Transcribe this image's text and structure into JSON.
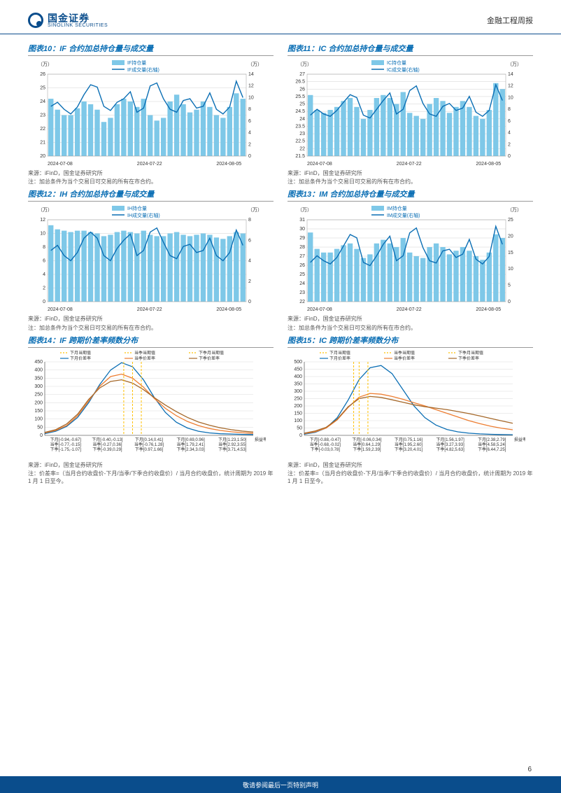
{
  "header": {
    "logo_cn": "国金证券",
    "logo_en": "SINOLINK SECURITIES",
    "right": "金融工程周报"
  },
  "footer": {
    "text": "敬请参阅最后一页特别声明",
    "page": "6"
  },
  "c10": {
    "title": "图表10：IF 合约加总持仓量与成交量",
    "src": "来源：iFinD，国金证券研究所",
    "note": "注：加总条件为当个交易日可交易的所有在市合约。",
    "yl_unit": "（万）",
    "yr_unit": "（万）",
    "leg_bar": "IF持仓量",
    "leg_line": "IF成交量(右轴)",
    "yl": [
      20,
      21,
      22,
      23,
      24,
      25,
      26
    ],
    "yr": [
      0,
      2,
      4,
      6,
      8,
      10,
      12,
      14
    ],
    "xticks": [
      "2024-07-08",
      "2024-07-22",
      "2024-08-05"
    ],
    "bars": [
      24.2,
      23.4,
      23.0,
      23.0,
      23.5,
      24.0,
      23.8,
      23.4,
      22.5,
      22.8,
      23.8,
      24.2,
      24.0,
      23.6,
      24.2,
      23.0,
      22.6,
      22.8,
      24.0,
      24.5,
      23.8,
      23.2,
      23.4,
      24.0,
      23.6,
      23.0,
      22.8,
      23.6,
      24.6,
      24.2
    ],
    "line": [
      8.5,
      9.2,
      8.0,
      7.2,
      8.4,
      10.5,
      12.2,
      11.8,
      8.5,
      7.8,
      9.2,
      9.8,
      11.0,
      7.5,
      8.2,
      12.0,
      12.5,
      9.8,
      8.0,
      7.5,
      9.5,
      9.8,
      8.2,
      8.5,
      10.8,
      8.0,
      7.2,
      8.4,
      12.8,
      10.0
    ],
    "bar_color": "#7ec8e8",
    "line_color": "#0a6eb4",
    "grid_color": "#d0d0d0"
  },
  "c11": {
    "title": "图表11：IC 合约加总持仓量与成交量",
    "src": "来源：iFinD，国金证券研究所",
    "note": "注：加总条件为当个交易日可交易的所有在市合约。",
    "yl_unit": "（万）",
    "yr_unit": "（万）",
    "leg_bar": "IC持仓量",
    "leg_line": "IC成交量(右轴)",
    "yl": [
      21.5,
      22,
      22.5,
      23,
      23.5,
      24,
      24.5,
      25,
      25.5,
      26,
      26.5,
      27
    ],
    "yr": [
      0,
      2,
      4,
      6,
      8,
      10,
      12,
      14
    ],
    "xticks": [
      "2024-07-08",
      "2024-07-22",
      "2024-08-05"
    ],
    "bars": [
      25.6,
      24.6,
      24.4,
      24.6,
      24.8,
      25.2,
      25.4,
      24.8,
      24.0,
      24.6,
      25.4,
      25.6,
      25.4,
      25.0,
      25.8,
      24.4,
      24.2,
      24.0,
      25.0,
      25.4,
      25.2,
      24.4,
      24.8,
      25.2,
      24.8,
      24.2,
      24.0,
      24.6,
      26.4,
      26.0
    ],
    "line": [
      7.0,
      8.0,
      7.2,
      6.8,
      7.8,
      9.2,
      10.5,
      10.0,
      7.0,
      6.5,
      8.0,
      9.5,
      10.8,
      7.2,
      8.0,
      11.2,
      12.0,
      9.0,
      7.2,
      6.8,
      8.5,
      9.0,
      7.8,
      8.2,
      10.2,
      7.5,
      6.8,
      7.8,
      12.2,
      9.5
    ],
    "bar_color": "#7ec8e8",
    "line_color": "#0a6eb4",
    "grid_color": "#d0d0d0"
  },
  "c12": {
    "title": "图表12：IH 合约加总持仓量与成交量",
    "src": "来源：iFinD，国金证券研究所",
    "note": "注：加总条件为当个交易日可交易的所有在市合约。",
    "yl_unit": "（万）",
    "yr_unit": "（万）",
    "leg_bar": "IH持仓量",
    "leg_line": "IH成交量(右轴)",
    "yl": [
      0,
      2,
      4,
      6,
      8,
      10,
      12
    ],
    "yr": [
      0,
      2,
      4,
      6,
      8
    ],
    "xticks": [
      "2024-07-08",
      "2024-07-22",
      "2024-08-05"
    ],
    "bars": [
      11.2,
      10.6,
      10.4,
      10.2,
      10.4,
      10.4,
      10.2,
      10.0,
      9.6,
      9.8,
      10.2,
      10.4,
      10.2,
      10.0,
      10.4,
      9.8,
      9.6,
      9.6,
      10.0,
      10.2,
      9.8,
      9.6,
      9.8,
      10.0,
      9.8,
      9.4,
      9.2,
      9.6,
      10.2,
      10.0
    ],
    "line": [
      5.0,
      5.5,
      4.5,
      4.0,
      4.8,
      6.2,
      6.8,
      6.2,
      4.5,
      4.0,
      5.2,
      6.0,
      6.6,
      4.5,
      5.0,
      6.8,
      7.2,
      5.8,
      4.5,
      4.2,
      5.4,
      5.6,
      4.8,
      5.0,
      6.2,
      4.5,
      4.0,
      4.8,
      7.0,
      5.5
    ],
    "bar_color": "#7ec8e8",
    "line_color": "#0a6eb4",
    "grid_color": "#d0d0d0"
  },
  "c13": {
    "title": "图表13：IM 合约加总持仓量与成交量",
    "src": "来源：iFinD，国金证券研究所",
    "note": "注：加总条件为当个交易日可交易的所有在市合约。",
    "yl_unit": "（万）",
    "yr_unit": "（万）",
    "leg_bar": "IM持仓量",
    "leg_line": "IM成交量(右轴)",
    "yl": [
      22,
      23,
      24,
      25,
      26,
      27,
      28,
      29,
      30,
      31
    ],
    "yr": [
      0,
      5,
      10,
      15,
      20,
      25
    ],
    "xticks": [
      "2024-07-08",
      "2024-07-22",
      "2024-08-05"
    ],
    "bars": [
      29.6,
      27.8,
      27.4,
      27.4,
      27.8,
      28.2,
      28.4,
      27.8,
      26.8,
      27.2,
      28.4,
      28.8,
      28.4,
      28.0,
      29.0,
      27.4,
      27.0,
      26.8,
      28.0,
      28.4,
      28.0,
      27.2,
      27.6,
      28.0,
      27.6,
      27.0,
      26.6,
      27.4,
      29.4,
      29.0
    ],
    "line": [
      12.0,
      14.0,
      12.5,
      11.5,
      13.5,
      17.0,
      20.5,
      19.5,
      12.0,
      11.0,
      14.0,
      17.5,
      20.0,
      12.5,
      14.0,
      21.0,
      22.5,
      16.5,
      12.5,
      11.8,
      15.5,
      16.0,
      13.5,
      14.5,
      19.0,
      13.0,
      11.5,
      13.8,
      23.0,
      17.5
    ],
    "bar_color": "#7ec8e8",
    "line_color": "#0a6eb4",
    "grid_color": "#d0d0d0"
  },
  "c14": {
    "title": "图表14：IF 跨期价差率频数分布",
    "src": "来源：iFinD，国金证券研究所",
    "note": "注：价差率=（当月合约收盘价-下月/当季/下季合约收盘价）/ 当月合约收盘价，统计周期为 2019 年 1 月 1 日至今。",
    "leg": [
      "下月当期值",
      "当季当期值",
      "下季月当期值",
      "下月价差率",
      "当季价差率",
      "下季价差率"
    ],
    "ymax": 450,
    "yticks": [
      0,
      50,
      100,
      150,
      200,
      250,
      300,
      350,
      400,
      450
    ],
    "xlabel": "损益率",
    "xlbl": [
      [
        "下月[-0.94,-0.67]",
        "当季[-0.77,-0.15]",
        "下季[-1.75,-1.07]"
      ],
      [
        "下月[-0.40,-0.13]",
        "当季[-0.27,0.36]",
        "下季[-0.39,0.29]"
      ],
      [
        "下月[0.14,0.41]",
        "当季[-0.76,1.28]",
        "下季[0.97,1.66]"
      ],
      [
        "下月[0.69,0.96]",
        "当季[1.79,2.41]",
        "下季[2.34,3.03]"
      ],
      [
        "下月[1.23,1.50]",
        "当季[2.92,3.55]",
        "下季[3.71,4.53]"
      ]
    ],
    "curves": {
      "blue": [
        10,
        25,
        55,
        110,
        200,
        310,
        400,
        445,
        420,
        340,
        230,
        140,
        80,
        45,
        25,
        15,
        10,
        8,
        6,
        5
      ],
      "orange": [
        15,
        30,
        60,
        120,
        210,
        300,
        360,
        375,
        350,
        295,
        225,
        165,
        120,
        85,
        60,
        42,
        30,
        22,
        16,
        12
      ],
      "brown": [
        18,
        35,
        70,
        130,
        220,
        290,
        330,
        340,
        320,
        280,
        230,
        185,
        145,
        110,
        82,
        62,
        46,
        35,
        26,
        20
      ]
    },
    "vlines": {
      "yellow": [
        7.2,
        8.0,
        8.8
      ]
    },
    "colors": {
      "blue": "#0a6eb4",
      "orange": "#ed7d31",
      "brown": "#a5682a",
      "yellow": "#ffc000",
      "grid": "#d0d0d0"
    }
  },
  "c15": {
    "title": "图表15：IC 跨期价差率频数分布",
    "src": "来源：iFinD，国金证券研究所",
    "note": "注：价差率=（当月合约收盘价-下月/当季/下季合约收盘价）/ 当月合约收盘价，统计周期为 2019 年 1 月 1 日至今。",
    "leg": [
      "下月当期值",
      "当季当期值",
      "下季月当期值",
      "下月价差率",
      "当季价差率",
      "下季价差率"
    ],
    "ymax": 500,
    "yticks": [
      0,
      50,
      100,
      150,
      200,
      250,
      300,
      350,
      400,
      450,
      500
    ],
    "xlabel": "损益率",
    "xlbl": [
      [
        "下月[-0.88,-0.47]",
        "当季[-0.68,-0.02]",
        "下季[-0.03,0.78]"
      ],
      [
        "下月[-0.06,0.34]",
        "当季[0.64,1.29]",
        "下季[1.59,2.39]"
      ],
      [
        "下月[0.75,1.16]",
        "当季[1.95,2.60]",
        "下季[3.20,4.01]"
      ],
      [
        "下月[1.56,1.97]",
        "当季[3.27,3.93]",
        "下季[4.82,5.63]"
      ],
      [
        "下月[2.38,2.79]",
        "当季[4.58,5.24]",
        "下季[6.44,7.25]"
      ]
    ],
    "curves": {
      "blue": [
        8,
        20,
        50,
        120,
        240,
        380,
        460,
        475,
        420,
        310,
        200,
        120,
        70,
        40,
        24,
        15,
        10,
        7,
        5,
        4
      ],
      "orange": [
        12,
        24,
        50,
        105,
        190,
        260,
        285,
        280,
        265,
        245,
        222,
        200,
        175,
        150,
        125,
        100,
        80,
        62,
        48,
        38
      ],
      "brown": [
        15,
        30,
        55,
        110,
        195,
        250,
        265,
        258,
        242,
        225,
        208,
        195,
        185,
        175,
        162,
        148,
        132,
        115,
        98,
        82
      ]
    },
    "vlines": {
      "yellow": [
        4.5,
        5.0,
        5.8
      ]
    },
    "colors": {
      "blue": "#0a6eb4",
      "orange": "#ed7d31",
      "brown": "#a5682a",
      "yellow": "#ffc000",
      "grid": "#d0d0d0"
    }
  }
}
